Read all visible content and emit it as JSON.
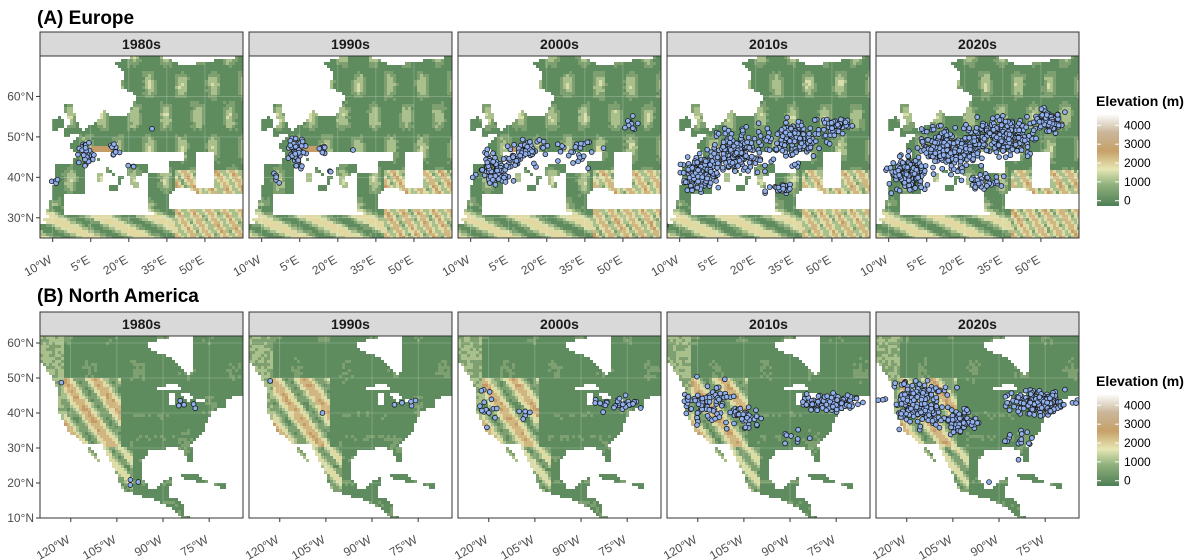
{
  "figure": {
    "panel_a_title": "(A) Europe",
    "panel_b_title": "(B) North America"
  },
  "colors": {
    "sea": "#ffffff",
    "land_low": "#5a8a5a",
    "land_mid": "#e8e8b8",
    "land_high": "#b8905a",
    "land_peak": "#ffffff",
    "point_fill": "#8fb0ee",
    "point_stroke": "#1a1a1a",
    "strip_bg": "#d9d9d9",
    "grid": "#e6e6e6"
  },
  "chart_data": [
    {
      "type": "scatter",
      "region": "Europe",
      "title": "(A) Europe",
      "facets": [
        "1980s",
        "1990s",
        "2000s",
        "2010s",
        "2020s"
      ],
      "xlim": [
        -15,
        65
      ],
      "ylim": [
        25,
        70
      ],
      "x_ticks": [
        -10,
        5,
        20,
        35,
        50
      ],
      "x_tick_labels": [
        "10°W",
        "5°E",
        "20°E",
        "35°E",
        "50°E"
      ],
      "y_ticks": [
        30,
        40,
        50,
        60
      ],
      "y_tick_labels": [
        "30°N",
        "40°N",
        "50°N",
        "60°N"
      ],
      "grid": true,
      "point_clusters": {
        "1980s": [
          {
            "lon": 3,
            "lat": 46,
            "spread_lon": 2.5,
            "spread_lat": 2.5,
            "n": 35
          },
          {
            "lon": 14,
            "lat": 47,
            "spread_lon": 1.5,
            "spread_lat": 1.5,
            "n": 10
          },
          {
            "lon": -8,
            "lat": 39,
            "spread_lon": 1.5,
            "spread_lat": 1,
            "n": 4
          },
          {
            "lon": 21,
            "lat": 43,
            "spread_lon": 1,
            "spread_lat": 1,
            "n": 3
          },
          {
            "lon": 29,
            "lat": 52,
            "spread_lon": 0.3,
            "spread_lat": 0.3,
            "n": 1
          }
        ],
        "1990s": [
          {
            "lon": 4,
            "lat": 46,
            "spread_lon": 3,
            "spread_lat": 3,
            "n": 60
          },
          {
            "lon": 14,
            "lat": 47,
            "spread_lon": 1.5,
            "spread_lat": 1.5,
            "n": 8
          },
          {
            "lon": -4,
            "lat": 39,
            "spread_lon": 1.5,
            "spread_lat": 2,
            "n": 5
          },
          {
            "lon": 17,
            "lat": 42,
            "spread_lon": 1,
            "spread_lat": 1,
            "n": 2
          },
          {
            "lon": 26,
            "lat": 47,
            "spread_lon": 0.3,
            "spread_lat": 0.3,
            "n": 1
          }
        ],
        "2000s": [
          {
            "lon": 0,
            "lat": 42,
            "spread_lon": 6,
            "spread_lat": 3,
            "n": 90
          },
          {
            "lon": 12,
            "lat": 46,
            "spread_lon": 6,
            "spread_lat": 3,
            "n": 60
          },
          {
            "lon": 32,
            "lat": 47,
            "spread_lon": 10,
            "spread_lat": 3,
            "n": 25
          },
          {
            "lon": 52,
            "lat": 53,
            "spread_lon": 3,
            "spread_lat": 2,
            "n": 10
          },
          {
            "lon": -16,
            "lat": 28,
            "spread_lon": 0.5,
            "spread_lat": 0.3,
            "n": 1
          }
        ],
        "2010s": [
          {
            "lon": -2,
            "lat": 41,
            "spread_lon": 6,
            "spread_lat": 3,
            "n": 140
          },
          {
            "lon": 12,
            "lat": 46,
            "spread_lon": 8,
            "spread_lat": 4,
            "n": 180
          },
          {
            "lon": 35,
            "lat": 49,
            "spread_lon": 10,
            "spread_lat": 4,
            "n": 140
          },
          {
            "lon": 52,
            "lat": 53,
            "spread_lon": 4,
            "spread_lat": 2,
            "n": 50
          },
          {
            "lon": 30,
            "lat": 37,
            "spread_lon": 5,
            "spread_lat": 1.5,
            "n": 25
          },
          {
            "lon": -16,
            "lat": 28,
            "spread_lon": 0.8,
            "spread_lat": 0.3,
            "n": 3
          }
        ],
        "2020s": [
          {
            "lon": -2,
            "lat": 41,
            "spread_lon": 6,
            "spread_lat": 3,
            "n": 170
          },
          {
            "lon": 14,
            "lat": 47,
            "spread_lon": 9,
            "spread_lat": 4,
            "n": 240
          },
          {
            "lon": 35,
            "lat": 50,
            "spread_lon": 10,
            "spread_lat": 4,
            "n": 220
          },
          {
            "lon": 53,
            "lat": 54,
            "spread_lon": 5,
            "spread_lat": 2,
            "n": 80
          },
          {
            "lon": 28,
            "lat": 39,
            "spread_lon": 6,
            "spread_lat": 2,
            "n": 40
          },
          {
            "lon": -16,
            "lat": 28,
            "spread_lon": 0.8,
            "spread_lat": 0.3,
            "n": 3
          }
        ]
      }
    },
    {
      "type": "scatter",
      "region": "North America",
      "title": "(B) North America",
      "facets": [
        "1980s",
        "1990s",
        "2000s",
        "2010s",
        "2020s"
      ],
      "xlim": [
        -130,
        -64
      ],
      "ylim": [
        10,
        62
      ],
      "x_ticks": [
        -120,
        -105,
        -90,
        -75
      ],
      "x_tick_labels": [
        "120°W",
        "105°W",
        "90°W",
        "75°W"
      ],
      "y_ticks": [
        10,
        20,
        30,
        40,
        50,
        60
      ],
      "y_tick_labels": [
        "10°N",
        "20°N",
        "30°N",
        "40°N",
        "50°N",
        "60°N"
      ],
      "grid": true,
      "point_clusters": {
        "1980s": [
          {
            "lon": -123,
            "lat": 49,
            "spread_lon": 0.3,
            "spread_lat": 0.3,
            "n": 1
          },
          {
            "lon": -83,
            "lat": 42,
            "spread_lon": 4,
            "spread_lat": 1,
            "n": 5
          },
          {
            "lon": -100,
            "lat": 21,
            "spread_lon": 1.5,
            "spread_lat": 1.5,
            "n": 3
          }
        ],
        "1990s": [
          {
            "lon": -123,
            "lat": 49,
            "spread_lon": 0.3,
            "spread_lat": 0.3,
            "n": 1
          },
          {
            "lon": -106,
            "lat": 40,
            "spread_lon": 0.3,
            "spread_lat": 0.3,
            "n": 1
          },
          {
            "lon": -80,
            "lat": 43,
            "spread_lon": 4,
            "spread_lat": 1,
            "n": 5
          }
        ],
        "2000s": [
          {
            "lon": -120,
            "lat": 43,
            "spread_lon": 3,
            "spread_lat": 4,
            "n": 15
          },
          {
            "lon": -108,
            "lat": 40,
            "spread_lon": 3,
            "spread_lat": 2,
            "n": 5
          },
          {
            "lon": -78,
            "lat": 43,
            "spread_lon": 6,
            "spread_lat": 2,
            "n": 30
          }
        ],
        "2010s": [
          {
            "lon": -117,
            "lat": 43,
            "spread_lon": 6,
            "spread_lat": 5,
            "n": 80
          },
          {
            "lon": -105,
            "lat": 39,
            "spread_lon": 5,
            "spread_lat": 3,
            "n": 40
          },
          {
            "lon": -77,
            "lat": 43,
            "spread_lon": 7,
            "spread_lat": 2,
            "n": 120
          },
          {
            "lon": -87,
            "lat": 32,
            "spread_lon": 4,
            "spread_lat": 3,
            "n": 8
          }
        ],
        "2020s": [
          {
            "lon": -116,
            "lat": 43,
            "spread_lon": 7,
            "spread_lat": 5,
            "n": 170
          },
          {
            "lon": -103,
            "lat": 38,
            "spread_lon": 5,
            "spread_lat": 3,
            "n": 70
          },
          {
            "lon": -77,
            "lat": 43,
            "spread_lon": 8,
            "spread_lat": 2.5,
            "n": 200
          },
          {
            "lon": -85,
            "lat": 32,
            "spread_lon": 5,
            "spread_lat": 3,
            "n": 15
          },
          {
            "lon": -93,
            "lat": 20,
            "spread_lon": 0.5,
            "spread_lat": 0.5,
            "n": 1
          }
        ]
      }
    }
  ],
  "legend": {
    "title": "Elevation (m)",
    "labels": [
      "4000",
      "3000",
      "2000",
      "1000",
      "0"
    ],
    "values": [
      4000,
      3000,
      2000,
      1000,
      0
    ]
  }
}
